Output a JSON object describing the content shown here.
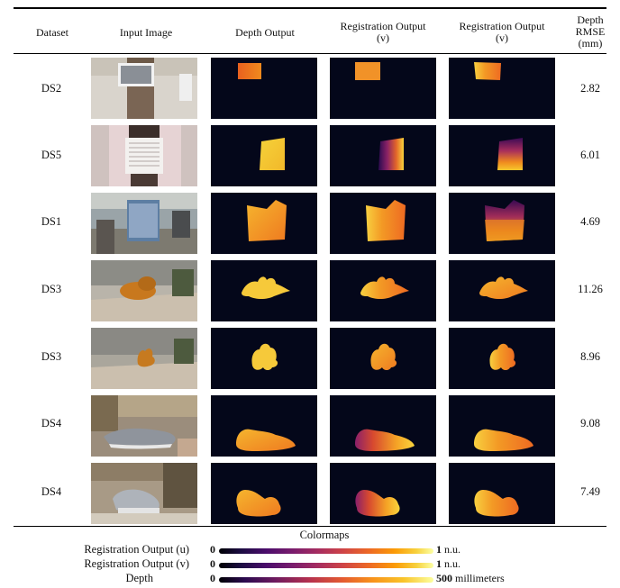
{
  "table": {
    "headers": {
      "dataset": "Dataset",
      "input": "Input Image",
      "depth": "Depth Output",
      "reg_v_1_line1": "Registration Output",
      "reg_v_1_line2": "(v)",
      "reg_v_2_line1": "Registration Output",
      "reg_v_2_line2": "(v)",
      "rmse_line1": "Depth",
      "rmse_line2": "RMSE",
      "rmse_line3": "(mm)"
    },
    "rows": [
      {
        "dataset": "DS2",
        "rmse": "2.82"
      },
      {
        "dataset": "DS5",
        "rmse": "6.01"
      },
      {
        "dataset": "DS1",
        "rmse": "4.69"
      },
      {
        "dataset": "DS3",
        "rmse": "11.26"
      },
      {
        "dataset": "DS3",
        "rmse": "8.96"
      },
      {
        "dataset": "DS4",
        "rmse": "9.08"
      },
      {
        "dataset": "DS4",
        "rmse": "7.49"
      }
    ]
  },
  "colormaps": {
    "title": "Colormaps",
    "items": [
      {
        "label": "Registration Output (u)",
        "min": "0",
        "max": "1",
        "unit": "n.u."
      },
      {
        "label": "Registration Output (v)",
        "min": "0",
        "max": "1",
        "unit": "n.u."
      },
      {
        "label": "Depth",
        "min": "0",
        "max": "500",
        "unit": "millimeters"
      }
    ]
  }
}
